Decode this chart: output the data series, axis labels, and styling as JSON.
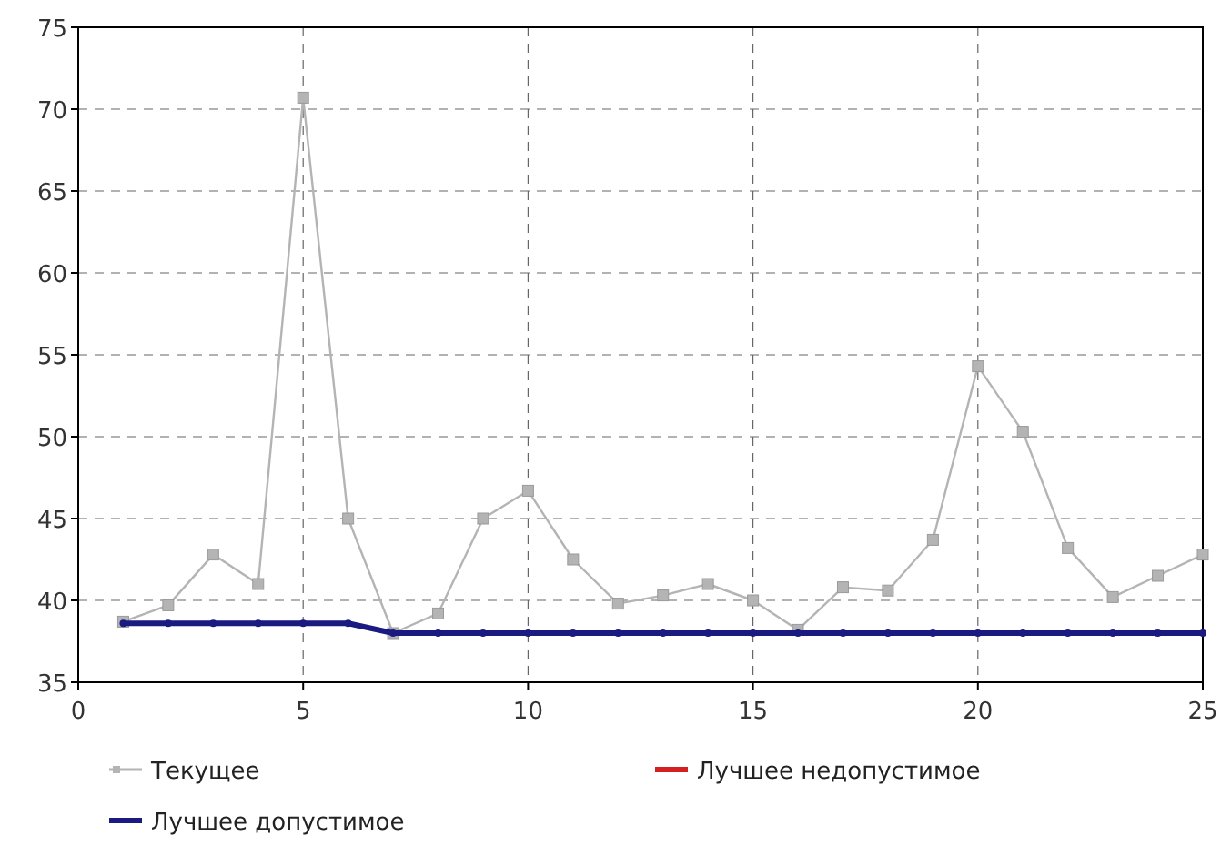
{
  "chart_data": {
    "type": "line",
    "x": [
      1,
      2,
      3,
      4,
      5,
      6,
      7,
      8,
      9,
      10,
      11,
      12,
      13,
      14,
      15,
      16,
      17,
      18,
      19,
      20,
      21,
      22,
      23,
      24,
      25
    ],
    "series": [
      {
        "name": "Текущее",
        "color": "#b4b4b4",
        "marker": "square",
        "values": [
          38.7,
          39.7,
          42.8,
          41,
          70.7,
          45,
          38,
          39.2,
          45,
          46.7,
          42.5,
          39.8,
          40.3,
          41,
          40,
          38.2,
          40.8,
          40.6,
          43.7,
          54.3,
          50.3,
          43.2,
          40.2,
          41.5,
          42.8
        ]
      },
      {
        "name": "Лучшее недопустимое",
        "color": "#d42020",
        "marker": "none",
        "values": [
          null,
          null,
          null,
          null,
          null,
          null,
          null,
          null,
          null,
          null,
          null,
          null,
          null,
          null,
          null,
          null,
          null,
          null,
          null,
          null,
          null,
          null,
          null,
          null,
          null
        ]
      },
      {
        "name": "Лучшее допустимое",
        "color": "#1a1a80",
        "marker": "circle",
        "values": [
          38.6,
          38.6,
          38.6,
          38.6,
          38.6,
          38.6,
          38,
          38,
          38,
          38,
          38,
          38,
          38,
          38,
          38,
          38,
          38,
          38,
          38,
          38,
          38,
          38,
          38,
          38,
          38
        ]
      }
    ],
    "xlim": [
      0,
      25
    ],
    "xticks": [
      0,
      5,
      10,
      15,
      20,
      25
    ],
    "ylim": [
      35,
      75
    ],
    "yticks": [
      35,
      40,
      45,
      50,
      55,
      60,
      65,
      70,
      75
    ],
    "grid": true,
    "legend": "bottom",
    "line_style": "solid"
  }
}
